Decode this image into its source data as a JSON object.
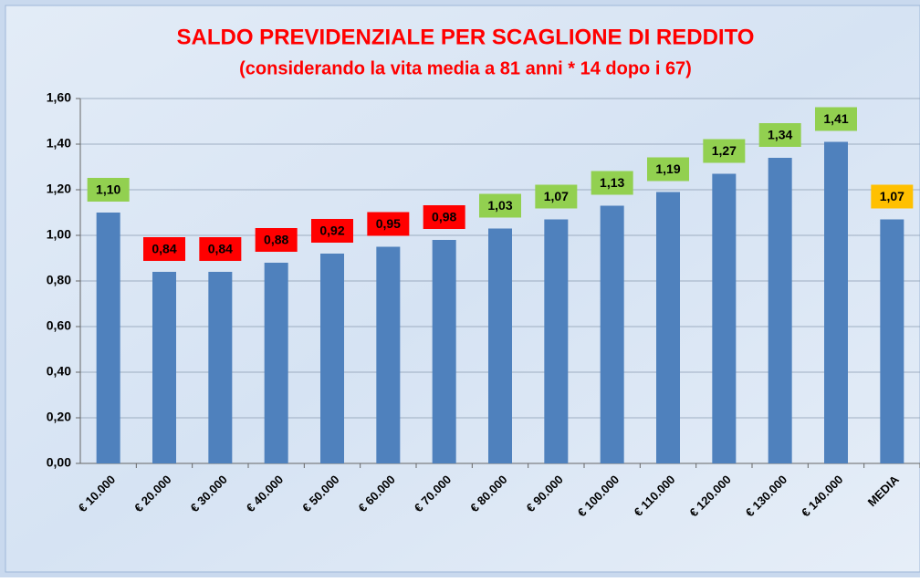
{
  "chart_data": {
    "type": "bar",
    "title": "SALDO PREVIDENZIALE PER SCAGLIONE DI REDDITO",
    "subtitle": "(considerando la vita media a 81 anni  * 14 dopo i 67)",
    "categories": [
      "€ 10.000",
      "€ 20.000",
      "€ 30.000",
      "€ 40.000",
      "€ 50.000",
      "€ 60.000",
      "€ 70.000",
      "€ 80.000",
      "€ 90.000",
      "€ 100.000",
      "€ 110.000",
      "€ 120.000",
      "€ 130.000",
      "€ 140.000",
      "MEDIA"
    ],
    "values": [
      1.1,
      0.84,
      0.84,
      0.88,
      0.92,
      0.95,
      0.98,
      1.03,
      1.07,
      1.13,
      1.19,
      1.27,
      1.34,
      1.41,
      1.07
    ],
    "value_labels": [
      "1,10",
      "0,84",
      "0,84",
      "0,88",
      "0,92",
      "0,95",
      "0,98",
      "1,03",
      "1,07",
      "1,13",
      "1,19",
      "1,27",
      "1,34",
      "1,41",
      "1,07"
    ],
    "label_colors": [
      "#92d050",
      "#ff0000",
      "#ff0000",
      "#ff0000",
      "#ff0000",
      "#ff0000",
      "#ff0000",
      "#92d050",
      "#92d050",
      "#92d050",
      "#92d050",
      "#92d050",
      "#92d050",
      "#92d050",
      "#ffc000"
    ],
    "color": "#4f81bd",
    "ylim": [
      0,
      1.6
    ],
    "yticks": [
      {
        "value": 0,
        "label": "0,00"
      },
      {
        "value": 0.2,
        "label": "0,20"
      },
      {
        "value": 0.4,
        "label": "0,40"
      },
      {
        "value": 0.6,
        "label": "0,60"
      },
      {
        "value": 0.8,
        "label": "0,80"
      },
      {
        "value": 1.0,
        "label": "1,00"
      },
      {
        "value": 1.2,
        "label": "1,20"
      },
      {
        "value": 1.4,
        "label": "1,40"
      },
      {
        "value": 1.6,
        "label": "1,60"
      }
    ],
    "grid": true
  }
}
